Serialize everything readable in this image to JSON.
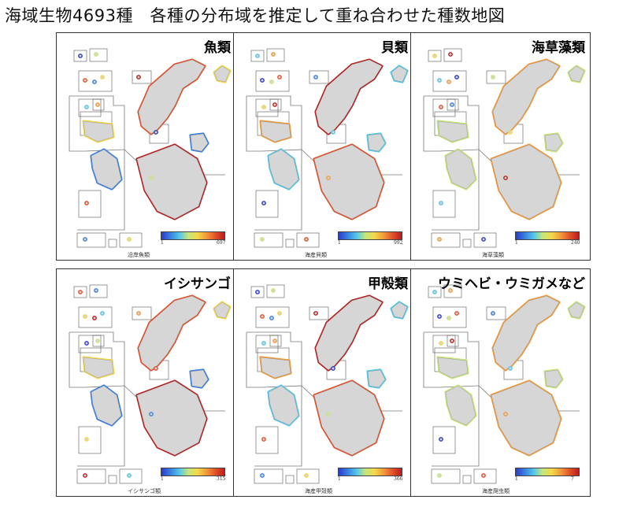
{
  "title": "海域生物4693種　各種の分布域を推定して重ね合わせた種数地図",
  "colorbar": {
    "colors": [
      "#2a3cc8",
      "#3a7fe0",
      "#54c6e8",
      "#c8e67a",
      "#f4d84a",
      "#f29a3a",
      "#e2502a",
      "#b81e1e"
    ]
  },
  "map_colors": {
    "land": "#d6d6d6",
    "land_border": "#8c8c8c",
    "box_line": "#777777"
  },
  "panels": [
    {
      "title": "魚類",
      "caption": "沿岸魚類",
      "min": "1",
      "max": "697"
    },
    {
      "title": "貝類",
      "caption": "海産貝類",
      "min": "1",
      "max": "992"
    },
    {
      "title": "海草藻類",
      "caption": "海草藻類",
      "min": "1",
      "max": "240"
    },
    {
      "title": "イシサンゴ",
      "caption": "イシサンゴ類",
      "min": "1",
      "max": "315"
    },
    {
      "title": "甲殻類",
      "caption": "海産甲殻類",
      "min": "1",
      "max": "366"
    },
    {
      "title": "ウミヘビ・ウミガメなど",
      "caption": "海産爬虫類",
      "min": "1",
      "max": "7"
    }
  ]
}
